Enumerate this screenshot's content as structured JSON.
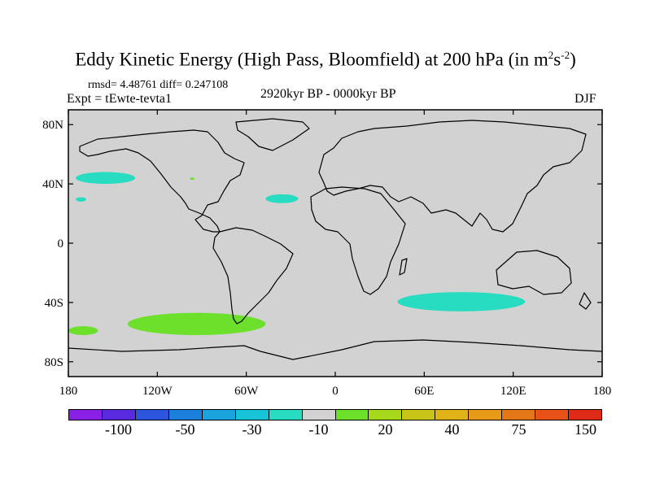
{
  "title": {
    "prefix": "Eddy Kinetic Energy (High Pass, Bloomfield) at 200 hPa (in m",
    "sup1": "2",
    "mid": "s",
    "sup2": "-2",
    "suffix": ")"
  },
  "stats": "rmsd= 4.48761 diff= 0.247108",
  "experiment": "Expt = tEwte-tevta1",
  "period": "2920kyr BP - 0000kyr BP",
  "season": "DJF",
  "map": {
    "projection": "cylindrical equidistant",
    "lon_range": [
      -180,
      180
    ],
    "lat_range": [
      -90,
      90
    ],
    "lat_ticks": [
      {
        "lat": 80,
        "label": "80N"
      },
      {
        "lat": 40,
        "label": "40N"
      },
      {
        "lat": 0,
        "label": "0"
      },
      {
        "lat": -40,
        "label": "40S"
      },
      {
        "lat": -80,
        "label": "80S"
      }
    ],
    "lon_ticks": [
      {
        "lon": -180,
        "label": "180"
      },
      {
        "lon": -120,
        "label": "120W"
      },
      {
        "lon": -60,
        "label": "60W"
      },
      {
        "lon": 0,
        "label": "0"
      },
      {
        "lon": 60,
        "label": "60E"
      },
      {
        "lon": 120,
        "label": "120E"
      },
      {
        "lon": 180,
        "label": "180"
      }
    ],
    "colors": {
      "background": "#d2d2d2",
      "coast": "#000000",
      "positive_green": "#6ce02a",
      "negative_teal": "#27dcc0"
    },
    "anomalies": [
      {
        "name": "north-pacific-negative",
        "sign": "negative",
        "lon_min": -175,
        "lon_max": -135,
        "lat_min": 40,
        "lat_max": 48
      },
      {
        "name": "central-pacific-negative",
        "sign": "negative",
        "lon_min": -175,
        "lon_max": -168,
        "lat_min": 28,
        "lat_max": 31
      },
      {
        "name": "north-atlantic-negative",
        "sign": "negative",
        "lon_min": -47,
        "lon_max": -25,
        "lat_min": 27,
        "lat_max": 33
      },
      {
        "name": "south-indian-negative",
        "sign": "negative",
        "lon_min": 42,
        "lon_max": 128,
        "lat_min": -46,
        "lat_max": -33
      },
      {
        "name": "south-pacific-positive",
        "sign": "positive",
        "lon_min": -140,
        "lon_max": -47,
        "lat_min": -62,
        "lat_max": -47
      },
      {
        "name": "southwest-pacific-positive",
        "sign": "positive",
        "lon_min": -180,
        "lon_max": -160,
        "lat_min": -62,
        "lat_max": -56
      },
      {
        "name": "north-america-positive",
        "sign": "positive",
        "lon_min": -98,
        "lon_max": -95,
        "lat_min": 43,
        "lat_max": 44
      }
    ]
  },
  "legend": {
    "colors": [
      "#8a1fe6",
      "#5a2ae0",
      "#2b55dc",
      "#1c7fdc",
      "#19a2dc",
      "#17c3d6",
      "#27dcc0",
      "#d2d2d2",
      "#6ce02a",
      "#a6d81c",
      "#c8c418",
      "#e0b418",
      "#e69a18",
      "#e47818",
      "#e65218",
      "#e02a18"
    ],
    "labels": [
      "-100",
      "-50",
      "-30",
      "-10",
      "20",
      "40",
      "75",
      "150"
    ]
  }
}
